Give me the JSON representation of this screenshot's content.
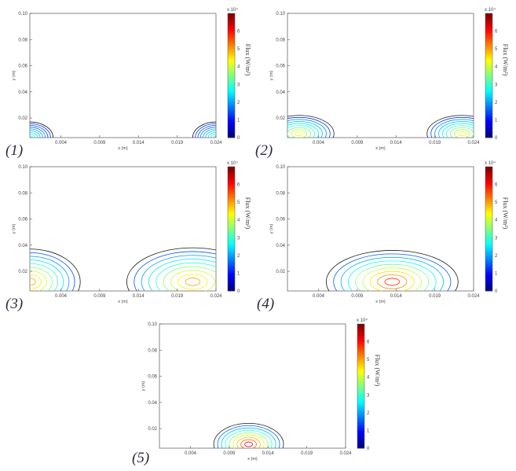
{
  "figure": {
    "colors": {
      "axes": "#555555",
      "colormap": "jet",
      "label": "#2b2b3a"
    }
  },
  "chart_data": [
    {
      "panel_label": "(1)",
      "type": "contour",
      "xlabel": "x (m)",
      "ylabel": "y (m)",
      "xlim": [
        0.0,
        0.024
      ],
      "ylim": [
        0.005,
        0.1
      ],
      "x_ticks": [
        "0.004",
        "0.009",
        "0.014",
        "0.019",
        "0.024"
      ],
      "y_ticks": [
        "0.02",
        "0.04",
        "0.06",
        "0.08",
        "0.10"
      ],
      "colorbar": {
        "label": "Flux (W/m²)",
        "exponent": "x 10⁴",
        "range": [
          0,
          7
        ],
        "ticks": [
          "0",
          "1",
          "2",
          "3",
          "4",
          "5",
          "6"
        ]
      },
      "hotspots": [
        {
          "cx": 0.0,
          "cy": 0.005,
          "rx": 0.003,
          "ry": 0.012,
          "peak": 0.8
        },
        {
          "cx": 0.024,
          "cy": 0.005,
          "rx": 0.003,
          "ry": 0.012,
          "peak": 0.8
        }
      ]
    },
    {
      "panel_label": "(2)",
      "type": "contour",
      "xlabel": "x (m)",
      "ylabel": "y (m)",
      "xlim": [
        0.0,
        0.024
      ],
      "ylim": [
        0.005,
        0.1
      ],
      "x_ticks": [
        "0.004",
        "0.009",
        "0.014",
        "0.019",
        "0.024"
      ],
      "y_ticks": [
        "0.02",
        "0.04",
        "0.06",
        "0.08",
        "0.10"
      ],
      "colorbar": {
        "label": "Flux (W/m²)",
        "exponent": "x 10⁴",
        "range": [
          0,
          7
        ],
        "ticks": [
          "0",
          "1",
          "2",
          "3",
          "4",
          "5",
          "6"
        ]
      },
      "hotspots": [
        {
          "cx": 0.0015,
          "cy": 0.008,
          "rx": 0.0045,
          "ry": 0.014,
          "peak": 2.5
        },
        {
          "cx": 0.0225,
          "cy": 0.008,
          "rx": 0.0045,
          "ry": 0.014,
          "peak": 2.5
        }
      ]
    },
    {
      "panel_label": "(3)",
      "type": "contour",
      "xlabel": "x (m)",
      "ylabel": "y (m)",
      "xlim": [
        0.0,
        0.024
      ],
      "ylim": [
        0.005,
        0.1
      ],
      "x_ticks": [
        "0.004",
        "0.009",
        "0.014",
        "0.019",
        "0.024"
      ],
      "y_ticks": [
        "0.02",
        "0.04",
        "0.06",
        "0.08",
        "0.10"
      ],
      "colorbar": {
        "label": "Flux (W/m²)",
        "exponent": "x 10⁴",
        "range": [
          0,
          7
        ],
        "ticks": [
          "0",
          "1",
          "2",
          "3",
          "4",
          "5",
          "6"
        ]
      },
      "hotspots": [
        {
          "cx": 0.0,
          "cy": 0.012,
          "rx": 0.0065,
          "ry": 0.025,
          "peak": 3.5
        },
        {
          "cx": 0.021,
          "cy": 0.012,
          "rx": 0.0085,
          "ry": 0.026,
          "peak": 3.5
        }
      ]
    },
    {
      "panel_label": "(4)",
      "type": "contour",
      "xlabel": "x (m)",
      "ylabel": "y (m)",
      "xlim": [
        0.0,
        0.024
      ],
      "ylim": [
        0.005,
        0.1
      ],
      "x_ticks": [
        "0.004",
        "0.009",
        "0.014",
        "0.019",
        "0.024"
      ],
      "y_ticks": [
        "0.02",
        "0.04",
        "0.06",
        "0.08",
        "0.10"
      ],
      "colorbar": {
        "label": "Flux (W/m²)",
        "exponent": "x 10⁴",
        "range": [
          0,
          7
        ],
        "ticks": [
          "0",
          "1",
          "2",
          "3",
          "4",
          "5",
          "6"
        ]
      },
      "hotspots": [
        {
          "cx": 0.0135,
          "cy": 0.012,
          "rx": 0.0085,
          "ry": 0.024,
          "peak": 4.5
        }
      ]
    },
    {
      "panel_label": "(5)",
      "type": "contour",
      "xlabel": "x (m)",
      "ylabel": "y (m)",
      "xlim": [
        0.0,
        0.024
      ],
      "ylim": [
        0.005,
        0.1
      ],
      "x_ticks": [
        "0.004",
        "0.009",
        "0.014",
        "0.019",
        "0.024"
      ],
      "y_ticks": [
        "0.02",
        "0.04",
        "0.06",
        "0.08",
        "0.10"
      ],
      "colorbar": {
        "label": "Flux (W/m²)",
        "exponent": "x 10⁴",
        "range": [
          0,
          7
        ],
        "ticks": [
          "0",
          "1",
          "2",
          "3",
          "4",
          "5",
          "6"
        ]
      },
      "hotspots": [
        {
          "cx": 0.0115,
          "cy": 0.008,
          "rx": 0.0045,
          "ry": 0.016,
          "peak": 5.0
        }
      ]
    }
  ]
}
